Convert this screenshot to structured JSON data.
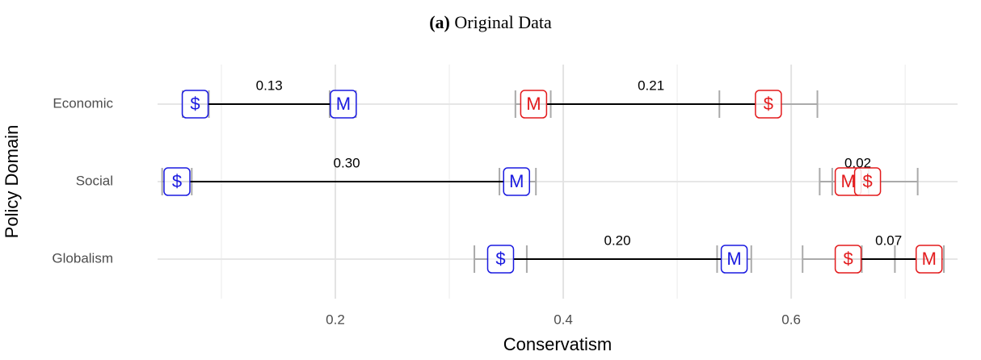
{
  "chart_data": {
    "type": "dumbbell",
    "title_label": "(a)",
    "title": "Original Data",
    "xlabel": "Conservatism",
    "ylabel": "Policy Domain",
    "xlim": [
      0.044,
      0.746
    ],
    "xticks": [
      0.2,
      0.4,
      0.6
    ],
    "minor_xticks": [
      0.1,
      0.3,
      0.5,
      0.7
    ],
    "grid": true,
    "categories": [
      "Economic",
      "Social",
      "Globalism"
    ],
    "groups": [
      {
        "color": "#1a1ae0",
        "rows": [
          {
            "points": [
              {
                "label": "$",
                "value": 0.077,
                "lo": 0.066,
                "hi": 0.089
              },
              {
                "label": "M",
                "value": 0.207,
                "lo": 0.195,
                "hi": 0.218
              }
            ],
            "diff_label": "0.13"
          },
          {
            "points": [
              {
                "label": "$",
                "value": 0.061,
                "lo": 0.048,
                "hi": 0.074
              },
              {
                "label": "M",
                "value": 0.359,
                "lo": 0.344,
                "hi": 0.376
              }
            ],
            "diff_label": "0.30"
          },
          {
            "points": [
              {
                "label": "$",
                "value": 0.345,
                "lo": 0.322,
                "hi": 0.368
              },
              {
                "label": "M",
                "value": 0.55,
                "lo": 0.535,
                "hi": 0.565
              }
            ],
            "diff_label": "0.20"
          }
        ]
      },
      {
        "color": "#e31a1c",
        "rows": [
          {
            "points": [
              {
                "label": "M",
                "value": 0.374,
                "lo": 0.358,
                "hi": 0.389
              },
              {
                "label": "$",
                "value": 0.58,
                "lo": 0.537,
                "hi": 0.623
              }
            ],
            "diff_label": "0.21"
          },
          {
            "points": [
              {
                "label": "M",
                "value": 0.65,
                "lo": 0.636,
                "hi": 0.668
              },
              {
                "label": "$",
                "value": 0.667,
                "lo": 0.625,
                "hi": 0.711
              }
            ],
            "diff_label": "0.02"
          },
          {
            "points": [
              {
                "label": "$",
                "value": 0.65,
                "lo": 0.61,
                "hi": 0.662
              },
              {
                "label": "M",
                "value": 0.721,
                "lo": 0.691,
                "hi": 0.734
              }
            ],
            "diff_label": "0.07"
          }
        ]
      }
    ]
  }
}
